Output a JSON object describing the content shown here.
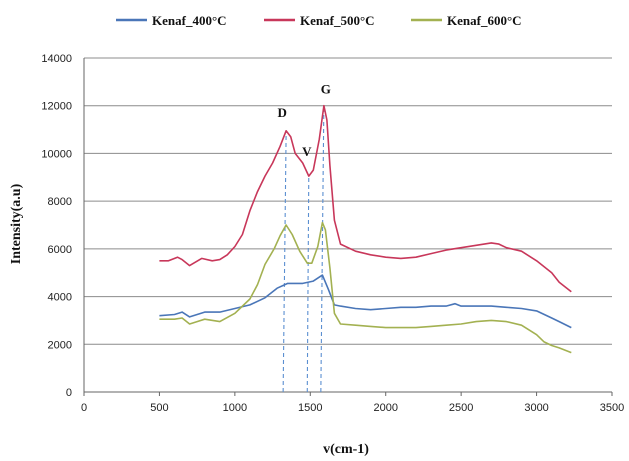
{
  "chart_data": {
    "type": "line",
    "title": "",
    "xlabel": "v(cm-1)",
    "ylabel": "Intensity(a.u)",
    "xlim": [
      0,
      3500
    ],
    "ylim": [
      0,
      14000
    ],
    "xticks": [
      "0",
      "500",
      "1000",
      "1500",
      "2000",
      "2500",
      "3000",
      "3500"
    ],
    "yticks": [
      "0",
      "2000",
      "4000",
      "6000",
      "8000",
      "10000",
      "12000",
      "14000"
    ],
    "grid": "horizontal",
    "legend": "top",
    "series": [
      {
        "name": "Kenaf_400°C",
        "color": "#4a76b8",
        "points": [
          [
            500,
            3200
          ],
          [
            600,
            3250
          ],
          [
            650,
            3350
          ],
          [
            700,
            3150
          ],
          [
            800,
            3350
          ],
          [
            900,
            3350
          ],
          [
            1000,
            3500
          ],
          [
            1100,
            3650
          ],
          [
            1200,
            3950
          ],
          [
            1280,
            4350
          ],
          [
            1350,
            4550
          ],
          [
            1450,
            4550
          ],
          [
            1520,
            4650
          ],
          [
            1580,
            4900
          ],
          [
            1620,
            4300
          ],
          [
            1660,
            3650
          ],
          [
            1700,
            3600
          ],
          [
            1800,
            3500
          ],
          [
            1900,
            3450
          ],
          [
            2000,
            3500
          ],
          [
            2100,
            3550
          ],
          [
            2200,
            3550
          ],
          [
            2300,
            3600
          ],
          [
            2400,
            3600
          ],
          [
            2460,
            3700
          ],
          [
            2500,
            3600
          ],
          [
            2600,
            3600
          ],
          [
            2700,
            3600
          ],
          [
            2800,
            3550
          ],
          [
            2900,
            3500
          ],
          [
            3000,
            3400
          ],
          [
            3100,
            3100
          ],
          [
            3150,
            2950
          ],
          [
            3230,
            2700
          ]
        ]
      },
      {
        "name": "Kenaf_500°C",
        "color": "#c8375a",
        "points": [
          [
            500,
            5500
          ],
          [
            560,
            5500
          ],
          [
            620,
            5650
          ],
          [
            650,
            5550
          ],
          [
            700,
            5300
          ],
          [
            780,
            5600
          ],
          [
            850,
            5500
          ],
          [
            900,
            5550
          ],
          [
            950,
            5750
          ],
          [
            1000,
            6100
          ],
          [
            1050,
            6600
          ],
          [
            1100,
            7600
          ],
          [
            1150,
            8400
          ],
          [
            1200,
            9050
          ],
          [
            1250,
            9600
          ],
          [
            1300,
            10300
          ],
          [
            1340,
            10950
          ],
          [
            1370,
            10700
          ],
          [
            1400,
            10000
          ],
          [
            1450,
            9600
          ],
          [
            1490,
            9050
          ],
          [
            1520,
            9300
          ],
          [
            1560,
            10600
          ],
          [
            1590,
            12000
          ],
          [
            1610,
            11400
          ],
          [
            1630,
            9500
          ],
          [
            1660,
            7200
          ],
          [
            1700,
            6200
          ],
          [
            1800,
            5900
          ],
          [
            1900,
            5750
          ],
          [
            2000,
            5650
          ],
          [
            2100,
            5600
          ],
          [
            2200,
            5650
          ],
          [
            2300,
            5800
          ],
          [
            2400,
            5950
          ],
          [
            2500,
            6050
          ],
          [
            2600,
            6150
          ],
          [
            2700,
            6250
          ],
          [
            2750,
            6200
          ],
          [
            2800,
            6050
          ],
          [
            2900,
            5900
          ],
          [
            3000,
            5500
          ],
          [
            3100,
            5000
          ],
          [
            3150,
            4600
          ],
          [
            3230,
            4200
          ]
        ]
      },
      {
        "name": "Kenaf_600°C",
        "color": "#a3b151",
        "points": [
          [
            500,
            3050
          ],
          [
            600,
            3050
          ],
          [
            650,
            3100
          ],
          [
            700,
            2850
          ],
          [
            750,
            2950
          ],
          [
            800,
            3050
          ],
          [
            900,
            2950
          ],
          [
            1000,
            3300
          ],
          [
            1100,
            3900
          ],
          [
            1150,
            4500
          ],
          [
            1200,
            5350
          ],
          [
            1260,
            6000
          ],
          [
            1300,
            6550
          ],
          [
            1340,
            7000
          ],
          [
            1380,
            6600
          ],
          [
            1430,
            5900
          ],
          [
            1480,
            5400
          ],
          [
            1510,
            5400
          ],
          [
            1550,
            6100
          ],
          [
            1580,
            7100
          ],
          [
            1600,
            6800
          ],
          [
            1630,
            5200
          ],
          [
            1660,
            3300
          ],
          [
            1700,
            2850
          ],
          [
            1800,
            2800
          ],
          [
            1900,
            2750
          ],
          [
            2000,
            2700
          ],
          [
            2100,
            2700
          ],
          [
            2200,
            2700
          ],
          [
            2300,
            2750
          ],
          [
            2400,
            2800
          ],
          [
            2500,
            2850
          ],
          [
            2600,
            2950
          ],
          [
            2700,
            3000
          ],
          [
            2800,
            2950
          ],
          [
            2900,
            2800
          ],
          [
            3000,
            2400
          ],
          [
            3050,
            2100
          ],
          [
            3100,
            1950
          ],
          [
            3150,
            1850
          ],
          [
            3230,
            1650
          ]
        ]
      }
    ],
    "reference_lines": [
      {
        "label": "D",
        "peak_x": 1340,
        "peak_y": 10950,
        "x_bottom": 1320
      },
      {
        "label": "V",
        "peak_x": 1490,
        "peak_y": 9050,
        "x_bottom": 1480
      },
      {
        "label": "G",
        "peak_x": 1590,
        "peak_y": 12000,
        "x_bottom": 1570
      }
    ]
  }
}
